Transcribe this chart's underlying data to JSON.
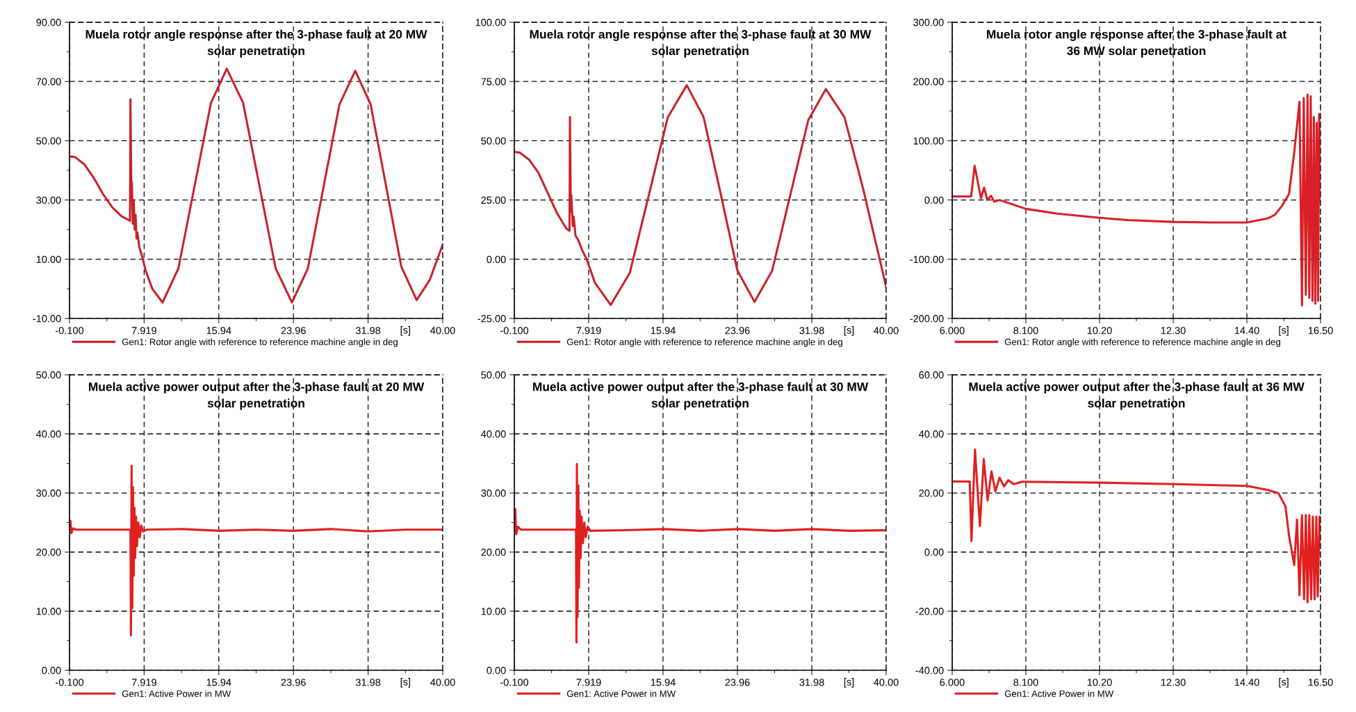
{
  "chart_data": [
    {
      "type": "line",
      "title": "Muela rotor angle response after the 3-phase fault at 20 MW\nsolar penetration",
      "xlabel": "[s]",
      "grid": true,
      "legend": "bottom",
      "xlim": [
        -0.1,
        40
      ],
      "xticks": [
        {
          "value": -0.1,
          "label": "-0.100"
        },
        {
          "value": 3.91,
          "label": null
        },
        {
          "value": 7.919,
          "label": "7.919"
        },
        {
          "value": 11.93,
          "label": null
        },
        {
          "value": 15.94,
          "label": "15.94"
        },
        {
          "value": 19.95,
          "label": null
        },
        {
          "value": 23.96,
          "label": "23.96"
        },
        {
          "value": 27.97,
          "label": null
        },
        {
          "value": 31.98,
          "label": "31.98"
        },
        {
          "value": 35.99,
          "label": null
        },
        {
          "value": 40,
          "label": "40.00"
        }
      ],
      "ylim": [
        -10,
        90
      ],
      "yticks": [
        {
          "value": -10,
          "label": "-10.00"
        },
        {
          "value": 0,
          "label": null
        },
        {
          "value": 10,
          "label": "10.00"
        },
        {
          "value": 20,
          "label": null
        },
        {
          "value": 30,
          "label": "30.00"
        },
        {
          "value": 40,
          "label": null
        },
        {
          "value": 50,
          "label": "50.00"
        },
        {
          "value": 60,
          "label": null
        },
        {
          "value": 70,
          "label": "70.00"
        },
        {
          "value": 80,
          "label": null
        },
        {
          "value": 90,
          "label": "90.00"
        }
      ],
      "series": [
        {
          "name": "Gen1: Rotor angle with reference to reference machine angle in deg",
          "color": "#c8232a",
          "x": [
            -0.1,
            0.5,
            1.5,
            2.5,
            3.5,
            4.5,
            5.5,
            6.4,
            6.45,
            6.55,
            6.6,
            6.7,
            6.8,
            6.9,
            7.0,
            7.1,
            7.2,
            7.4,
            7.7,
            8.1,
            8.8,
            9.9,
            11.6,
            13.35,
            15.1,
            16.8,
            18.55,
            20.3,
            22.05,
            23.8,
            25.5,
            27.2,
            28.9,
            30.6,
            32.25,
            33.9,
            35.55,
            37.2,
            38.6,
            40
          ],
          "values": [
            44.7,
            44.5,
            42,
            37.5,
            32,
            27.5,
            24.5,
            23,
            64,
            30,
            36,
            22,
            30,
            20,
            25,
            17,
            19,
            14,
            11,
            6,
            0,
            -4.6,
            6.9,
            34.9,
            62.8,
            74.3,
            62.8,
            34.9,
            6.9,
            -4.6,
            6.8,
            34.5,
            62.2,
            73.6,
            62.3,
            34.9,
            7.5,
            -3.8,
            3,
            14.9
          ]
        }
      ]
    },
    {
      "type": "line",
      "title": "Muela rotor angle response after the 3-phase fault at 30 MW\nsolar penetration",
      "xlabel": "[s]",
      "grid": true,
      "legend": "bottom",
      "xlim": [
        -0.1,
        40
      ],
      "xticks": [
        {
          "value": -0.1,
          "label": "-0.100"
        },
        {
          "value": 3.91,
          "label": null
        },
        {
          "value": 7.919,
          "label": "7.919"
        },
        {
          "value": 11.93,
          "label": null
        },
        {
          "value": 15.94,
          "label": "15.94"
        },
        {
          "value": 19.95,
          "label": null
        },
        {
          "value": 23.96,
          "label": "23.96"
        },
        {
          "value": 27.97,
          "label": null
        },
        {
          "value": 31.98,
          "label": "31.98"
        },
        {
          "value": 35.99,
          "label": null
        },
        {
          "value": 40,
          "label": "40.00"
        }
      ],
      "ylim": [
        -25,
        100
      ],
      "yticks": [
        {
          "value": -25,
          "label": "-25.00"
        },
        {
          "value": -12.5,
          "label": null
        },
        {
          "value": 0,
          "label": "0.00"
        },
        {
          "value": 12.5,
          "label": null
        },
        {
          "value": 25,
          "label": "25.00"
        },
        {
          "value": 37.5,
          "label": null
        },
        {
          "value": 50,
          "label": "50.00"
        },
        {
          "value": 62.5,
          "label": null
        },
        {
          "value": 75,
          "label": "75.00"
        },
        {
          "value": 87.5,
          "label": null
        },
        {
          "value": 100,
          "label": "100.00"
        }
      ],
      "series": [
        {
          "name": "Gen1: Rotor angle with reference to reference machine angle in deg",
          "color": "#c8232a",
          "x": [
            -0.1,
            0.5,
            1.5,
            2.5,
            3.5,
            4.5,
            5.5,
            5.85,
            5.9,
            6.0,
            6.05,
            6.2,
            6.3,
            6.5,
            6.8,
            7.2,
            7.7,
            8.6,
            10.3,
            12.35,
            14.4,
            16.45,
            18.5,
            20.3,
            22.15,
            23.95,
            25.8,
            27.7,
            29.65,
            31.6,
            33.5,
            35.5,
            37.5,
            39,
            40
          ],
          "values": [
            45.3,
            45,
            42,
            36.5,
            28,
            19.5,
            13,
            12,
            60,
            20,
            27,
            14,
            18,
            10,
            8,
            4,
            0,
            -10,
            -19.3,
            -5.8,
            27,
            59.9,
            73.4,
            60.1,
            27.7,
            -4.7,
            -18,
            -4.9,
            26.9,
            58.7,
            71.8,
            60,
            30,
            5,
            -11.6
          ]
        }
      ]
    },
    {
      "type": "line",
      "title": "Muela rotor angle response after the 3-phase fault at\n36 MW solar penetration",
      "xlabel": "[s]",
      "grid": true,
      "legend": "bottom",
      "xlim": [
        6,
        16.5
      ],
      "xticks": [
        {
          "value": 6,
          "label": "6.000"
        },
        {
          "value": 7.05,
          "label": null
        },
        {
          "value": 8.1,
          "label": "8.100"
        },
        {
          "value": 9.15,
          "label": null
        },
        {
          "value": 10.2,
          "label": "10.20"
        },
        {
          "value": 11.25,
          "label": null
        },
        {
          "value": 12.3,
          "label": "12.30"
        },
        {
          "value": 13.35,
          "label": null
        },
        {
          "value": 14.4,
          "label": "14.40"
        },
        {
          "value": 15.45,
          "label": null
        },
        {
          "value": 16.5,
          "label": "16.50"
        }
      ],
      "ylim": [
        -200,
        300
      ],
      "yticks": [
        {
          "value": -200,
          "label": "-200.00"
        },
        {
          "value": -150,
          "label": null
        },
        {
          "value": -100,
          "label": "-100.00"
        },
        {
          "value": -50,
          "label": null
        },
        {
          "value": 0,
          "label": "0.00"
        },
        {
          "value": 50,
          "label": null
        },
        {
          "value": 100,
          "label": "100.00"
        },
        {
          "value": 150,
          "label": null
        },
        {
          "value": 200,
          "label": "200.00"
        },
        {
          "value": 250,
          "label": null
        },
        {
          "value": 300,
          "label": "300.00"
        }
      ],
      "series": [
        {
          "name": "Gen1: Rotor angle with reference to reference machine angle in deg",
          "color": "#d82026",
          "x": [
            6,
            6.54,
            6.64,
            6.82,
            6.91,
            7.0,
            7.11,
            7.2,
            7.35,
            7.6,
            8.1,
            9.0,
            10.2,
            11,
            12.3,
            13.4,
            14.4,
            15.0,
            15.2,
            15.4,
            15.6,
            15.75,
            15.9,
            15.97,
            16.02,
            16.08,
            16.13,
            16.18,
            16.22,
            16.27,
            16.31,
            16.35,
            16.39,
            16.43,
            16.46,
            16.5
          ],
          "values": [
            6,
            6,
            58,
            3,
            21,
            0,
            7,
            -3,
            0,
            -5,
            -15,
            -23,
            -30,
            -34,
            -37,
            -38,
            -38,
            -31,
            -25,
            -10,
            10,
            80,
            166,
            -178,
            172,
            -160,
            178,
            -165,
            175,
            -170,
            140,
            -175,
            130,
            -170,
            145,
            0
          ]
        }
      ]
    },
    {
      "type": "line",
      "title": "Muela active power output after the 3-phase fault at 20 MW\nsolar penetration",
      "xlabel": "[s]",
      "grid": true,
      "legend": "bottom",
      "xlim": [
        -0.1,
        40
      ],
      "xticks": [
        {
          "value": -0.1,
          "label": "-0.100"
        },
        {
          "value": 3.91,
          "label": null
        },
        {
          "value": 7.919,
          "label": "7.919"
        },
        {
          "value": 11.93,
          "label": null
        },
        {
          "value": 15.94,
          "label": "15.94"
        },
        {
          "value": 19.95,
          "label": null
        },
        {
          "value": 23.96,
          "label": "23.96"
        },
        {
          "value": 27.97,
          "label": null
        },
        {
          "value": 31.98,
          "label": "31.98"
        },
        {
          "value": 35.99,
          "label": null
        },
        {
          "value": 40,
          "label": "40.00"
        }
      ],
      "ylim": [
        0,
        50
      ],
      "yticks": [
        {
          "value": 0,
          "label": "0.00"
        },
        {
          "value": 5,
          "label": null
        },
        {
          "value": 10,
          "label": "10.00"
        },
        {
          "value": 15,
          "label": null
        },
        {
          "value": 20,
          "label": "20.00"
        },
        {
          "value": 25,
          "label": null
        },
        {
          "value": 30,
          "label": "30.00"
        },
        {
          "value": 35,
          "label": null
        },
        {
          "value": 40,
          "label": "40.00"
        },
        {
          "value": 45,
          "label": null
        },
        {
          "value": 50,
          "label": "50.00"
        }
      ],
      "series": [
        {
          "name": "Gen1: Active Power in MW",
          "color": "#e0201f",
          "x": [
            -0.1,
            0.0,
            0.1,
            0.3,
            0.6,
            6.45,
            6.5,
            6.57,
            6.65,
            6.72,
            6.8,
            6.88,
            6.95,
            7.05,
            7.15,
            7.3,
            7.45,
            7.6,
            7.8,
            8.2,
            12,
            16,
            20,
            24,
            28,
            32,
            36,
            40
          ],
          "values": [
            23.8,
            25.3,
            23.2,
            24,
            23.8,
            23.8,
            5.9,
            34.6,
            10.5,
            31,
            16,
            27.5,
            19,
            26,
            21,
            25,
            22.5,
            24.5,
            23.5,
            23.8,
            23.9,
            23.6,
            23.8,
            23.6,
            23.9,
            23.5,
            23.8,
            23.8
          ]
        }
      ]
    },
    {
      "type": "line",
      "title": "Muela active power output after the 3-phase fault at 30 MW\nsolar penetration",
      "xlabel": "[s]",
      "grid": true,
      "legend": "bottom",
      "xlim": [
        -0.1,
        40
      ],
      "xticks": [
        {
          "value": -0.1,
          "label": "-0.100"
        },
        {
          "value": 3.91,
          "label": null
        },
        {
          "value": 7.919,
          "label": "7.919"
        },
        {
          "value": 11.93,
          "label": null
        },
        {
          "value": 15.94,
          "label": "15.94"
        },
        {
          "value": 19.95,
          "label": null
        },
        {
          "value": 23.96,
          "label": "23.96"
        },
        {
          "value": 27.97,
          "label": null
        },
        {
          "value": 31.98,
          "label": "31.98"
        },
        {
          "value": 35.99,
          "label": null
        },
        {
          "value": 40,
          "label": "40.00"
        }
      ],
      "ylim": [
        0,
        50
      ],
      "yticks": [
        {
          "value": 0,
          "label": "0.00"
        },
        {
          "value": 5,
          "label": null
        },
        {
          "value": 10,
          "label": "10.00"
        },
        {
          "value": 15,
          "label": null
        },
        {
          "value": 20,
          "label": "20.00"
        },
        {
          "value": 25,
          "label": null
        },
        {
          "value": 30,
          "label": "30.00"
        },
        {
          "value": 35,
          "label": null
        },
        {
          "value": 40,
          "label": "40.00"
        },
        {
          "value": 45,
          "label": null
        },
        {
          "value": 50,
          "label": "50.00"
        }
      ],
      "series": [
        {
          "name": "Gen1: Active Power in MW",
          "color": "#e0201f",
          "x": [
            -0.1,
            0.0,
            0.1,
            0.3,
            0.6,
            6.55,
            6.6,
            6.65,
            6.72,
            6.8,
            6.88,
            6.95,
            7.05,
            7.15,
            7.3,
            7.45,
            7.6,
            7.8,
            8.1,
            12,
            16,
            20,
            24,
            28,
            32,
            36,
            40
          ],
          "values": [
            23.8,
            27.3,
            23,
            24.3,
            23.8,
            23.8,
            4.7,
            34.9,
            9,
            31.3,
            14,
            27,
            19,
            26,
            21.5,
            25,
            22.5,
            24.3,
            23.6,
            23.7,
            23.9,
            23.6,
            23.9,
            23.6,
            23.9,
            23.6,
            23.7
          ]
        }
      ]
    },
    {
      "type": "line",
      "title": "Muela active power output after the 3-phase fault at 36 MW\nsolar penetration",
      "xlabel": "[s]",
      "grid": true,
      "legend": "bottom",
      "xlim": [
        6,
        16.5
      ],
      "xticks": [
        {
          "value": 6,
          "label": "6.000"
        },
        {
          "value": 7.05,
          "label": null
        },
        {
          "value": 8.1,
          "label": "8.100"
        },
        {
          "value": 9.15,
          "label": null
        },
        {
          "value": 10.2,
          "label": "10.20"
        },
        {
          "value": 11.25,
          "label": null
        },
        {
          "value": 12.3,
          "label": "12.30"
        },
        {
          "value": 13.35,
          "label": null
        },
        {
          "value": 14.4,
          "label": "14.40"
        },
        {
          "value": 15.45,
          "label": null
        },
        {
          "value": 16.5,
          "label": "16.50"
        }
      ],
      "ylim": [
        -40,
        60
      ],
      "yticks": [
        {
          "value": -40,
          "label": "-40.00"
        },
        {
          "value": -30,
          "label": null
        },
        {
          "value": -20,
          "label": "-20.00"
        },
        {
          "value": -10,
          "label": null
        },
        {
          "value": 0,
          "label": "0.00"
        },
        {
          "value": 10,
          "label": null
        },
        {
          "value": 20,
          "label": "20.00"
        },
        {
          "value": 30,
          "label": null
        },
        {
          "value": 40,
          "label": "40.00"
        },
        {
          "value": 50,
          "label": null
        },
        {
          "value": 60,
          "label": "60.00"
        }
      ],
      "series": [
        {
          "name": "Gen1: Active Power in MW",
          "color": "#e0201f",
          "x": [
            6,
            6.5,
            6.55,
            6.65,
            6.79,
            6.9,
            7.01,
            7.12,
            7.23,
            7.35,
            7.48,
            7.6,
            7.75,
            8.0,
            10.2,
            12.3,
            14.4,
            15.0,
            15.3,
            15.5,
            15.6,
            15.75,
            15.83,
            15.9,
            15.97,
            16.03,
            16.08,
            16.13,
            16.18,
            16.23,
            16.28,
            16.33,
            16.38,
            16.42,
            16.47,
            16.5
          ],
          "values": [
            23.9,
            23.9,
            3.7,
            34.7,
            8.8,
            31.5,
            17.5,
            27.3,
            20.6,
            25.2,
            22.2,
            24.3,
            23,
            23.8,
            23.5,
            23,
            22.4,
            21,
            19.9,
            15.5,
            5.6,
            -4.4,
            11,
            -14.6,
            12.5,
            -16,
            12.5,
            -17,
            12.5,
            -16,
            12,
            -16,
            12,
            -15,
            12,
            3
          ]
        }
      ]
    }
  ]
}
